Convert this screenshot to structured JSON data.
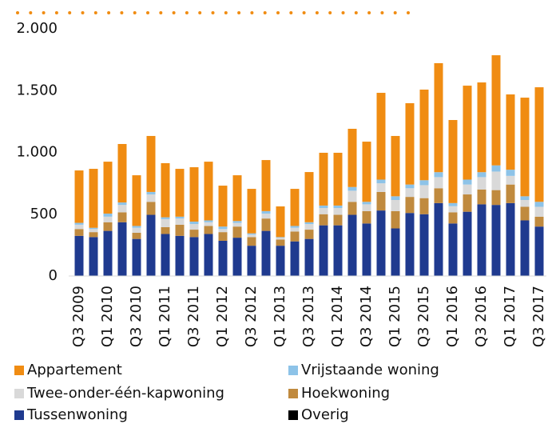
{
  "chart_data": {
    "type": "stacked_bar",
    "categories": [
      "Q3 2009",
      null,
      "Q1 2010",
      null,
      "Q3 2010",
      null,
      "Q1 2011",
      null,
      "Q3 2011",
      null,
      "Q1 2012",
      null,
      "Q3 2012",
      null,
      "Q1 2013",
      null,
      "Q3 2013",
      null,
      "Q1 2014",
      null,
      "Q3 2014",
      null,
      "Q1 2015",
      null,
      "Q3 2015",
      null,
      "Q1 2016",
      null,
      "Q3 2016",
      null,
      "Q1 2017",
      null,
      "Q3 2017"
    ],
    "series": [
      {
        "name": "Appartement",
        "color": "#f08c12",
        "values": [
          424,
          477,
          420,
          473,
          410,
          453,
          438,
          387,
          440,
          475,
          331,
          370,
          360,
          413,
          248,
          300,
          406,
          427,
          427,
          471,
          487,
          702,
          488,
          658,
          733,
          882,
          672,
          760,
          726,
          891,
          609,
          798,
          927
        ]
      },
      {
        "name": "Vrijstaande woning",
        "color": "#8dc3e8",
        "values": [
          15,
          10,
          25,
          20,
          15,
          20,
          15,
          15,
          20,
          15,
          20,
          15,
          10,
          20,
          5,
          15,
          15,
          20,
          20,
          30,
          20,
          30,
          30,
          30,
          40,
          40,
          25,
          40,
          40,
          50,
          50,
          30,
          40
        ]
      },
      {
        "name": "Twee-onder-één-kapwoning",
        "color": "#d9d9d9",
        "values": [
          35,
          25,
          45,
          60,
          40,
          60,
          65,
          50,
          45,
          30,
          25,
          30,
          20,
          40,
          15,
          30,
          45,
          50,
          55,
          90,
          55,
          70,
          90,
          70,
          105,
          90,
          50,
          80,
          100,
          150,
          70,
          55,
          80
        ]
      },
      {
        "name": "Hoekwoning",
        "color": "#c08a3e",
        "values": [
          55,
          40,
          70,
          80,
          50,
          105,
          55,
          90,
          60,
          65,
          70,
          90,
          70,
          100,
          50,
          80,
          75,
          90,
          85,
          105,
          100,
          150,
          140,
          130,
          130,
          120,
          90,
          140,
          120,
          120,
          150,
          110,
          80
        ]
      },
      {
        "name": "Tussenwoning",
        "color": "#1f3a8f",
        "values": [
          325,
          315,
          365,
          435,
          300,
          495,
          340,
          325,
          315,
          340,
          285,
          310,
          245,
          365,
          245,
          280,
          300,
          410,
          410,
          495,
          425,
          530,
          385,
          510,
          500,
          590,
          425,
          520,
          580,
          575,
          590,
          450,
          400
        ]
      },
      {
        "name": "Overig",
        "color": "#000000",
        "values": [
          0,
          0,
          0,
          0,
          0,
          0,
          0,
          0,
          0,
          0,
          0,
          0,
          0,
          0,
          0,
          0,
          0,
          0,
          0,
          0,
          0,
          0,
          0,
          0,
          0,
          0,
          0,
          0,
          0,
          0,
          0,
          0,
          0
        ]
      }
    ],
    "ylim": [
      0,
      2000
    ],
    "yticks": [
      0,
      500,
      {
        "value": 1000,
        "label": "1.000"
      },
      {
        "value": 1500,
        "label": "1.500"
      },
      {
        "value": 2000,
        "label": "2.000"
      }
    ],
    "grid": false
  }
}
